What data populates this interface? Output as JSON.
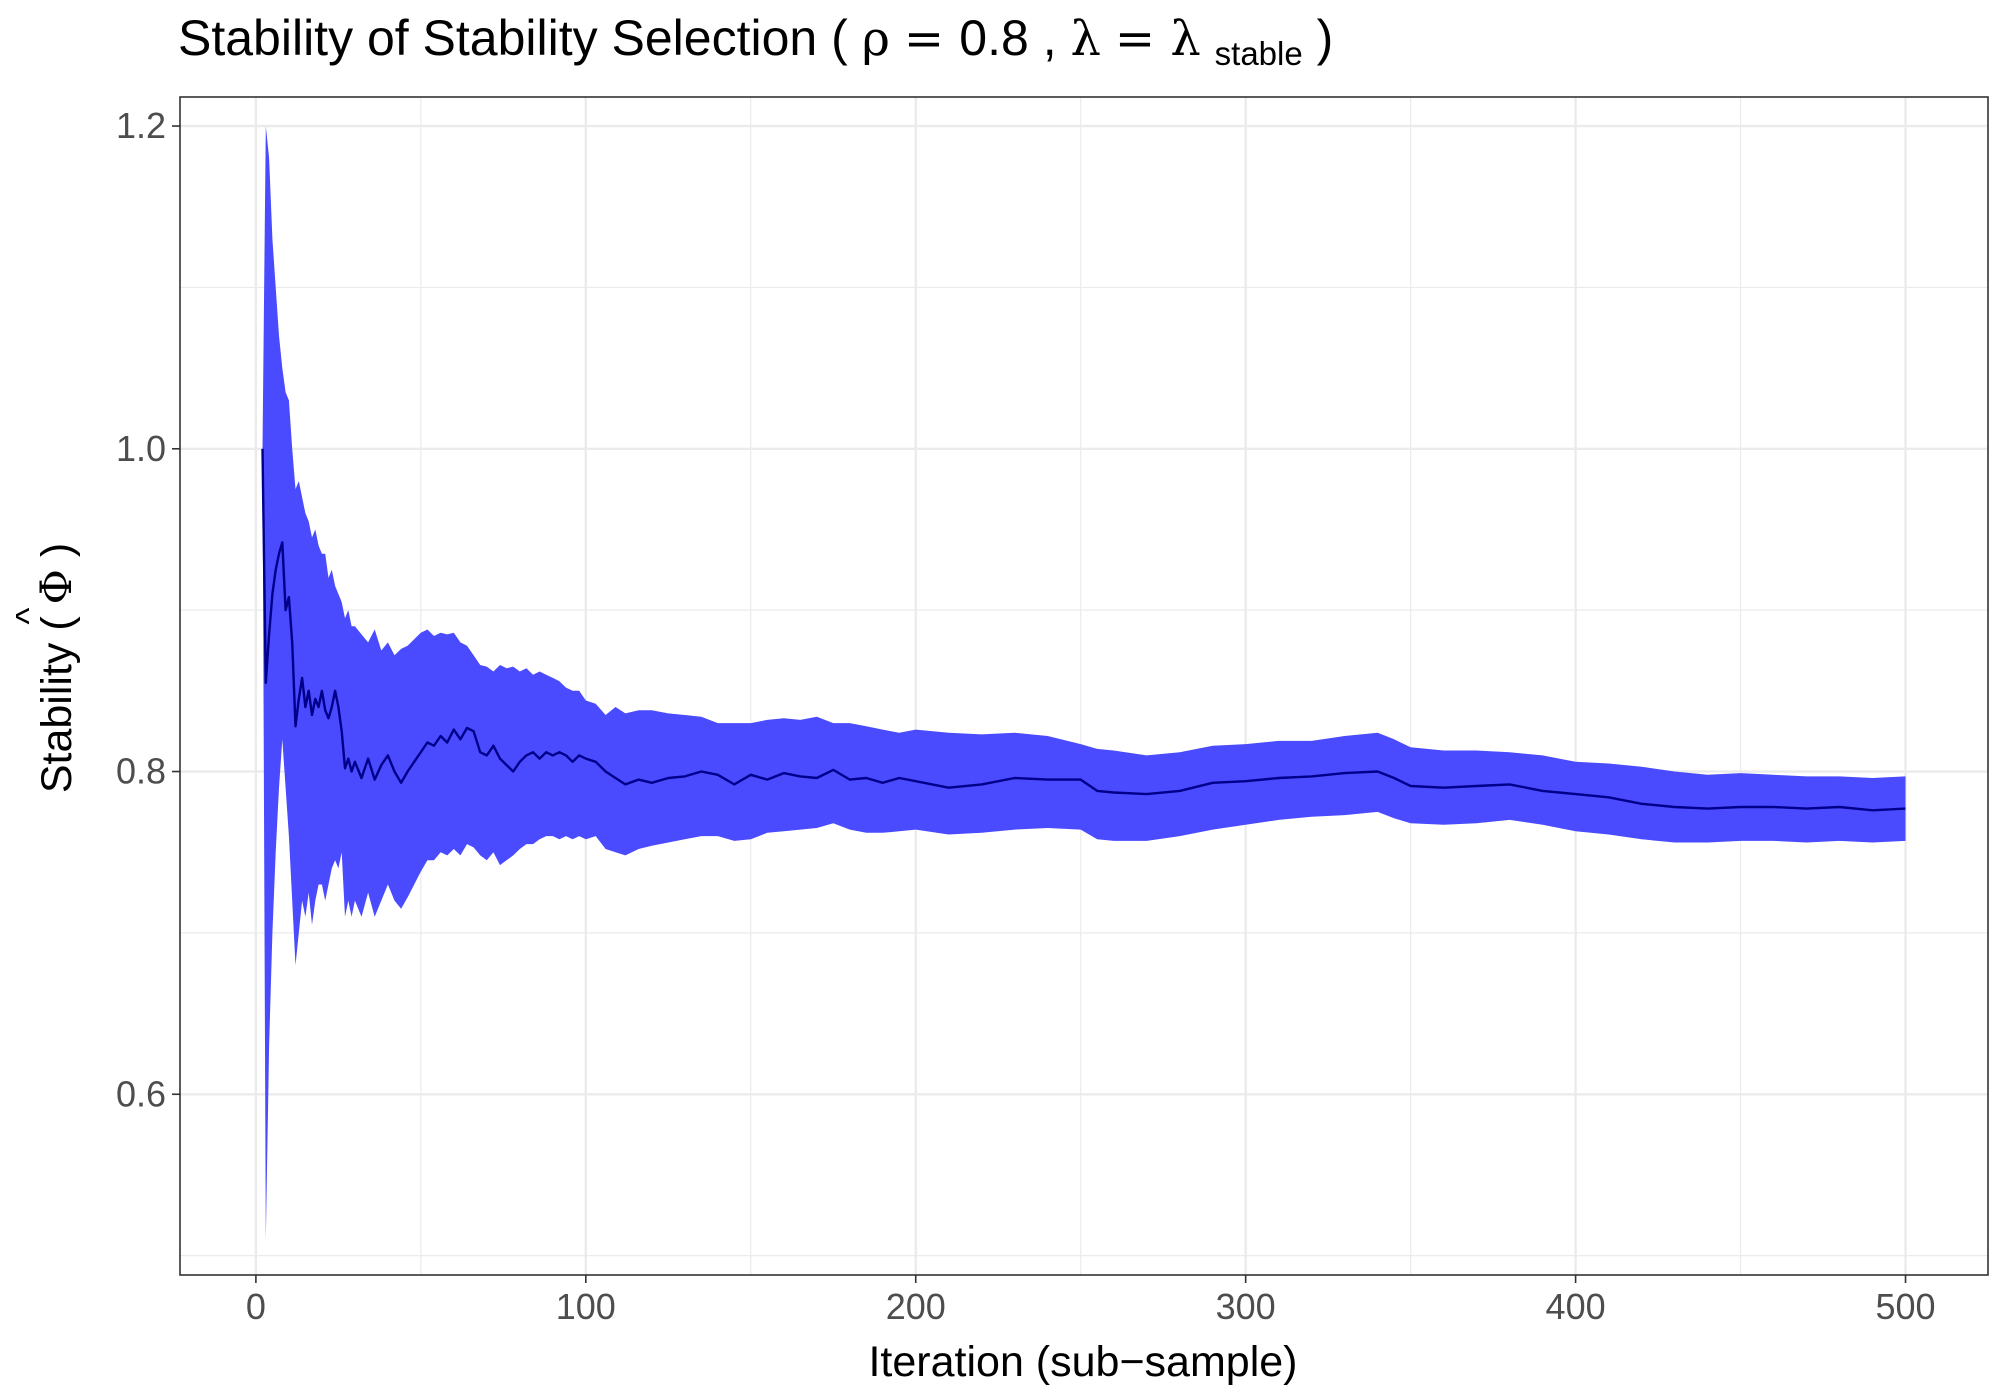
{
  "chart_data": {
    "type": "line",
    "title": {
      "text": "Stability of Stability Selection",
      "rho_symbol": "ρ",
      "rho_value": "0.8",
      "lambda_symbol": "λ",
      "lambda_sub": "stable"
    },
    "xlabel": "Iteration (sub−sample)",
    "ylabel": {
      "text": "Stability",
      "symbol": "Φ",
      "hat": "^"
    },
    "xlim": [
      -23,
      525
    ],
    "ylim": [
      0.488,
      1.218
    ],
    "x_ticks": [
      0,
      100,
      200,
      300,
      400,
      500
    ],
    "x_tick_labels": [
      "0",
      "100",
      "200",
      "300",
      "400",
      "500"
    ],
    "y_ticks": [
      0.6,
      0.8,
      1.0,
      1.2
    ],
    "y_tick_labels": [
      "0.6",
      "0.8",
      "1.0",
      "1.2"
    ],
    "grid": true,
    "legend": "none",
    "colors": {
      "band": "#4a4aff",
      "line": "#00008b",
      "grid": "#ebebeb"
    },
    "series": [
      {
        "x": [
          2,
          3,
          4,
          5,
          6,
          7,
          8,
          9,
          10,
          11,
          12,
          13,
          14,
          15,
          16,
          17,
          18,
          19,
          20,
          21,
          22,
          23,
          24,
          25,
          26,
          27,
          28,
          29,
          30,
          32,
          34,
          36,
          38,
          40,
          42,
          44,
          46,
          48,
          50,
          52,
          54,
          56,
          58,
          60,
          62,
          64,
          66,
          68,
          70,
          72,
          74,
          76,
          78,
          80,
          82,
          84,
          86,
          88,
          90,
          92,
          94,
          96,
          98,
          100,
          103,
          106,
          109,
          112,
          116,
          120,
          125,
          130,
          135,
          140,
          145,
          150,
          155,
          160,
          165,
          170,
          175,
          180,
          185,
          190,
          195,
          200,
          210,
          220,
          230,
          240,
          250,
          255,
          260,
          270,
          280,
          290,
          300,
          310,
          320,
          330,
          340,
          345,
          350,
          360,
          370,
          380,
          390,
          395,
          400,
          410,
          420,
          430,
          440,
          450,
          460,
          470,
          480,
          490,
          500
        ],
        "mean": [
          1.0,
          0.855,
          0.885,
          0.91,
          0.925,
          0.935,
          0.942,
          0.9,
          0.908,
          0.88,
          0.828,
          0.845,
          0.858,
          0.84,
          0.85,
          0.835,
          0.845,
          0.84,
          0.85,
          0.838,
          0.833,
          0.84,
          0.85,
          0.84,
          0.825,
          0.802,
          0.808,
          0.8,
          0.806,
          0.796,
          0.808,
          0.795,
          0.804,
          0.81,
          0.8,
          0.793,
          0.8,
          0.806,
          0.812,
          0.818,
          0.816,
          0.822,
          0.818,
          0.826,
          0.82,
          0.827,
          0.825,
          0.812,
          0.81,
          0.816,
          0.808,
          0.804,
          0.8,
          0.806,
          0.81,
          0.812,
          0.808,
          0.812,
          0.81,
          0.812,
          0.81,
          0.806,
          0.81,
          0.808,
          0.806,
          0.8,
          0.796,
          0.792,
          0.795,
          0.793,
          0.796,
          0.797,
          0.8,
          0.798,
          0.792,
          0.798,
          0.795,
          0.799,
          0.797,
          0.796,
          0.801,
          0.795,
          0.796,
          0.793,
          0.796,
          0.794,
          0.79,
          0.792,
          0.796,
          0.795,
          0.795,
          0.788,
          0.787,
          0.786,
          0.788,
          0.793,
          0.794,
          0.796,
          0.797,
          0.799,
          0.8,
          0.796,
          0.791,
          0.79,
          0.791,
          0.792,
          0.788,
          0.787,
          0.786,
          0.784,
          0.78,
          0.778,
          0.777,
          0.778,
          0.778,
          0.777,
          0.778,
          0.776,
          0.777
        ],
        "upper": [
          1.0,
          1.2,
          1.18,
          1.13,
          1.1,
          1.07,
          1.05,
          1.035,
          1.03,
          1.0,
          0.975,
          0.98,
          0.97,
          0.96,
          0.955,
          0.945,
          0.95,
          0.94,
          0.935,
          0.935,
          0.92,
          0.925,
          0.915,
          0.91,
          0.905,
          0.895,
          0.9,
          0.89,
          0.89,
          0.885,
          0.88,
          0.888,
          0.875,
          0.88,
          0.872,
          0.876,
          0.878,
          0.882,
          0.886,
          0.888,
          0.884,
          0.886,
          0.885,
          0.886,
          0.88,
          0.878,
          0.872,
          0.866,
          0.865,
          0.862,
          0.866,
          0.864,
          0.865,
          0.862,
          0.864,
          0.86,
          0.862,
          0.86,
          0.858,
          0.856,
          0.852,
          0.85,
          0.85,
          0.844,
          0.842,
          0.835,
          0.84,
          0.836,
          0.838,
          0.838,
          0.836,
          0.835,
          0.834,
          0.83,
          0.83,
          0.83,
          0.832,
          0.833,
          0.832,
          0.834,
          0.83,
          0.83,
          0.828,
          0.826,
          0.824,
          0.826,
          0.824,
          0.823,
          0.824,
          0.822,
          0.817,
          0.814,
          0.813,
          0.81,
          0.812,
          0.816,
          0.817,
          0.819,
          0.819,
          0.822,
          0.824,
          0.82,
          0.815,
          0.813,
          0.813,
          0.812,
          0.81,
          0.808,
          0.806,
          0.805,
          0.803,
          0.8,
          0.798,
          0.799,
          0.798,
          0.797,
          0.797,
          0.796,
          0.797
        ],
        "lower": [
          1.0,
          0.51,
          0.63,
          0.7,
          0.75,
          0.79,
          0.82,
          0.79,
          0.76,
          0.72,
          0.68,
          0.7,
          0.72,
          0.71,
          0.725,
          0.705,
          0.72,
          0.73,
          0.73,
          0.72,
          0.73,
          0.74,
          0.745,
          0.74,
          0.75,
          0.71,
          0.72,
          0.71,
          0.72,
          0.71,
          0.725,
          0.71,
          0.72,
          0.73,
          0.72,
          0.715,
          0.722,
          0.73,
          0.738,
          0.745,
          0.745,
          0.75,
          0.748,
          0.752,
          0.748,
          0.755,
          0.753,
          0.748,
          0.745,
          0.75,
          0.742,
          0.745,
          0.748,
          0.752,
          0.755,
          0.755,
          0.758,
          0.76,
          0.76,
          0.758,
          0.76,
          0.758,
          0.76,
          0.758,
          0.76,
          0.752,
          0.75,
          0.748,
          0.752,
          0.754,
          0.756,
          0.758,
          0.76,
          0.76,
          0.757,
          0.758,
          0.762,
          0.763,
          0.764,
          0.765,
          0.768,
          0.764,
          0.762,
          0.762,
          0.763,
          0.764,
          0.761,
          0.762,
          0.764,
          0.765,
          0.764,
          0.758,
          0.757,
          0.757,
          0.76,
          0.764,
          0.767,
          0.77,
          0.772,
          0.773,
          0.775,
          0.771,
          0.768,
          0.767,
          0.768,
          0.77,
          0.767,
          0.765,
          0.763,
          0.761,
          0.758,
          0.756,
          0.756,
          0.757,
          0.757,
          0.756,
          0.757,
          0.756,
          0.757
        ]
      }
    ]
  }
}
